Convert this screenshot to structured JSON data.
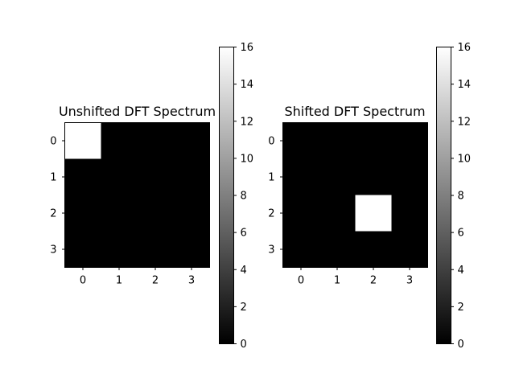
{
  "chart_data": [
    {
      "type": "heatmap",
      "title": "Unshifted DFT Spectrum",
      "xlabel": "",
      "ylabel": "",
      "x_ticks": [
        "0",
        "1",
        "2",
        "3"
      ],
      "y_ticks": [
        "0",
        "1",
        "2",
        "3"
      ],
      "values": [
        [
          16,
          0,
          0,
          0
        ],
        [
          0,
          0,
          0,
          0
        ],
        [
          0,
          0,
          0,
          0
        ],
        [
          0,
          0,
          0,
          0
        ]
      ],
      "colormap": "gray",
      "colorbar": {
        "range": [
          0,
          16
        ],
        "ticks": [
          "0",
          "2",
          "4",
          "6",
          "8",
          "10",
          "12",
          "14",
          "16"
        ]
      }
    },
    {
      "type": "heatmap",
      "title": "Shifted DFT Spectrum",
      "xlabel": "",
      "ylabel": "",
      "x_ticks": [
        "0",
        "1",
        "2",
        "3"
      ],
      "y_ticks": [
        "0",
        "1",
        "2",
        "3"
      ],
      "values": [
        [
          0,
          0,
          0,
          0
        ],
        [
          0,
          0,
          0,
          0
        ],
        [
          0,
          0,
          16,
          0
        ],
        [
          0,
          0,
          0,
          0
        ]
      ],
      "colormap": "gray",
      "colorbar": {
        "range": [
          0,
          16
        ],
        "ticks": [
          "0",
          "2",
          "4",
          "6",
          "8",
          "10",
          "12",
          "14",
          "16"
        ]
      }
    }
  ]
}
